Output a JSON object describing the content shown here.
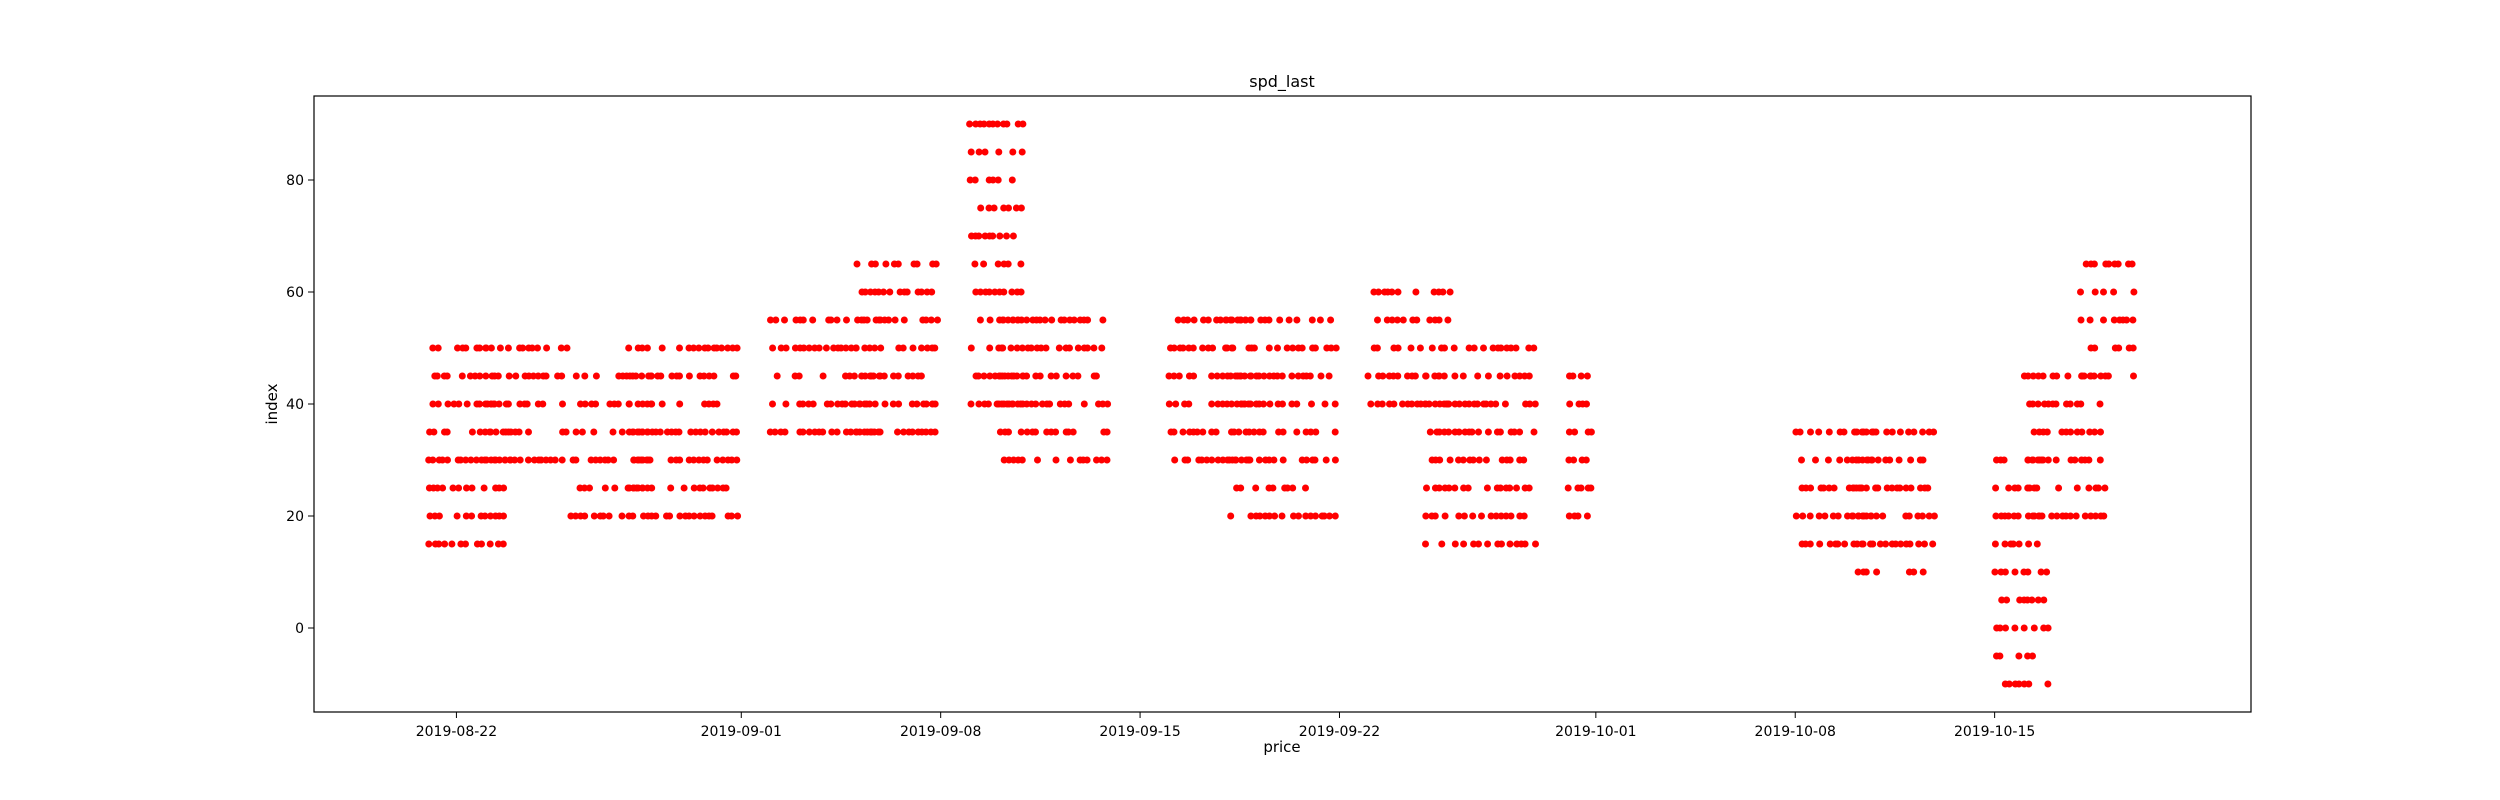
{
  "chart_data": {
    "type": "scatter",
    "title": "spd_last",
    "xlabel": "price",
    "ylabel": "index",
    "x_axis_type": "date",
    "xlim": [
      "2019-08-17",
      "2019-10-24"
    ],
    "ylim": [
      -15,
      95
    ],
    "x_ticks": [
      "2019-08-22",
      "2019-09-01",
      "2019-09-08",
      "2019-09-15",
      "2019-09-22",
      "2019-10-01",
      "2019-10-08",
      "2019-10-15"
    ],
    "y_ticks": [
      0,
      20,
      40,
      60,
      80
    ],
    "marker_color": "#ff0000",
    "grid": false,
    "legend": false,
    "clusters": [
      {
        "start": "2019-08-21",
        "end": "2019-08-23",
        "low": 15,
        "high": 50
      },
      {
        "start": "2019-08-23",
        "end": "2019-08-25",
        "low": 30,
        "high": 50
      },
      {
        "start": "2019-08-26",
        "end": "2019-08-28",
        "low": 20,
        "high": 45
      },
      {
        "start": "2019-08-28",
        "end": "2019-08-31",
        "low": 20,
        "high": 50
      },
      {
        "start": "2019-09-02",
        "end": "2019-09-05",
        "low": 35,
        "high": 55
      },
      {
        "start": "2019-09-05",
        "end": "2019-09-07",
        "low": 35,
        "high": 65
      },
      {
        "start": "2019-09-09",
        "end": "2019-09-10",
        "low": 40,
        "high": 90
      },
      {
        "start": "2019-09-10",
        "end": "2019-09-13",
        "low": 30,
        "high": 55
      },
      {
        "start": "2019-09-16",
        "end": "2019-09-18",
        "low": 30,
        "high": 55
      },
      {
        "start": "2019-09-18",
        "end": "2019-09-21",
        "low": 20,
        "high": 55
      },
      {
        "start": "2019-09-23",
        "end": "2019-09-25",
        "low": 40,
        "high": 60
      },
      {
        "start": "2019-09-25",
        "end": "2019-09-28",
        "low": 15,
        "high": 50
      },
      {
        "start": "2019-09-30",
        "end": "2019-09-30",
        "low": 20,
        "high": 45
      },
      {
        "start": "2019-10-08",
        "end": "2019-10-10",
        "low": 15,
        "high": 35
      },
      {
        "start": "2019-10-10",
        "end": "2019-10-12",
        "low": 10,
        "high": 35
      },
      {
        "start": "2019-10-15",
        "end": "2019-10-16",
        "low": -10,
        "high": 30
      },
      {
        "start": "2019-10-16",
        "end": "2019-10-18",
        "low": 20,
        "high": 45
      },
      {
        "start": "2019-10-18",
        "end": "2019-10-19",
        "low": 45,
        "high": 65
      }
    ]
  }
}
